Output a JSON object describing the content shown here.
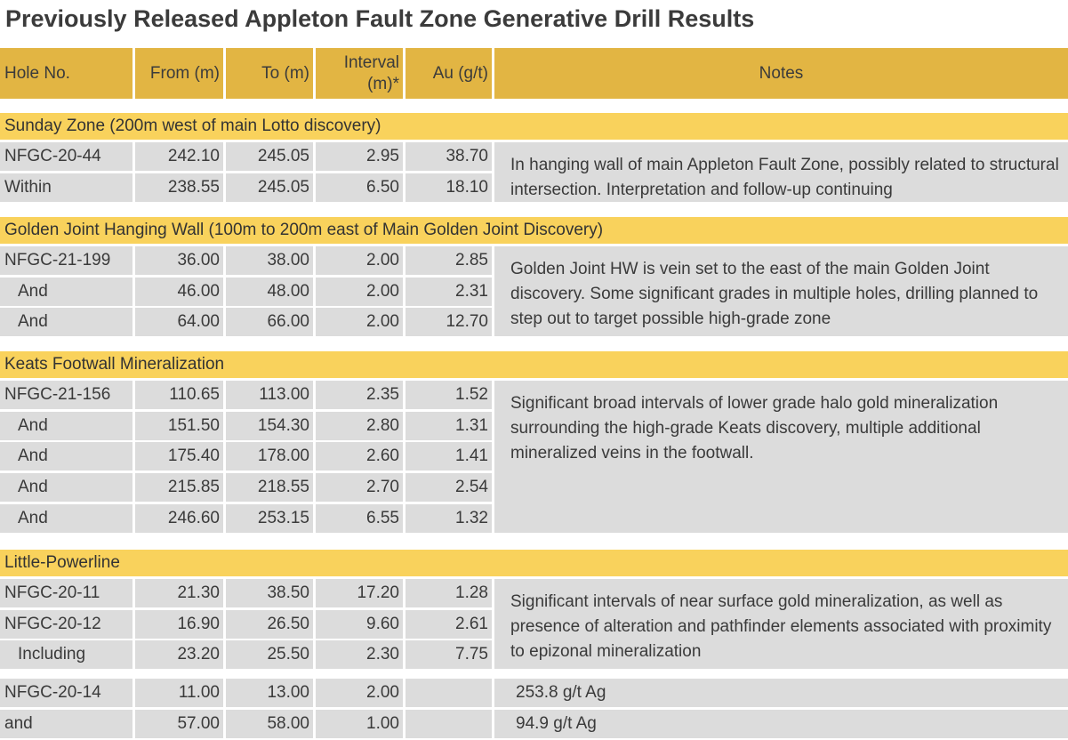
{
  "title": "Previously Released Appleton Fault Zone Generative Drill Results",
  "headers": {
    "hole": "Hole No.",
    "from": "From (m)",
    "to": "To (m)",
    "interval": "Interval (m)*",
    "au": "Au (g/t)",
    "notes": "Notes"
  },
  "sections": [
    {
      "title": "Sunday Zone (200m west of main Lotto discovery)",
      "rows": [
        [
          "NFGC-20-44",
          "242.10",
          "245.05",
          "2.95",
          "38.70"
        ],
        [
          "Within",
          "238.55",
          "245.05",
          "6.50",
          "18.10"
        ]
      ],
      "note": "In hanging wall of main Appleton Fault Zone, possibly related to structural intersection.  Interpretation and follow-up continuing"
    },
    {
      "title": "Golden Joint Hanging Wall (100m to 200m east of Main Golden Joint Discovery)",
      "rows": [
        [
          "NFGC-21-199",
          "36.00",
          "38.00",
          "2.00",
          "2.85"
        ],
        [
          "  And",
          "46.00",
          "48.00",
          "2.00",
          "2.31"
        ],
        [
          "  And",
          "64.00",
          "66.00",
          "2.00",
          "12.70"
        ]
      ],
      "note": "Golden Joint HW is vein set to the east of the main Golden Joint discovery.  Some significant grades in multiple holes, drilling planned to step out to target possible high-grade zone"
    },
    {
      "title": "Keats Footwall Mineralization",
      "rows": [
        [
          "NFGC-21-156",
          "110.65",
          "113.00",
          "2.35",
          "1.52"
        ],
        [
          "  And",
          "151.50",
          "154.30",
          "2.80",
          "1.31"
        ],
        [
          "  And",
          "175.40",
          "178.00",
          "2.60",
          "1.41"
        ],
        [
          "  And",
          "215.85",
          "218.55",
          "2.70",
          "2.54"
        ],
        [
          "  And",
          "246.60",
          "253.15",
          "6.55",
          "1.32"
        ]
      ],
      "note": "Significant broad intervals of lower grade halo gold mineralization surrounding the high-grade Keats discovery, multiple additional mineralized veins in the footwall."
    },
    {
      "title": "Little-Powerline",
      "rows": [
        [
          "NFGC-20-11",
          "21.30",
          "38.50",
          "17.20",
          "1.28"
        ],
        [
          "NFGC-20-12",
          "16.90",
          "26.50",
          "9.60",
          "2.61"
        ],
        [
          "  Including",
          "23.20",
          "25.50",
          "2.30",
          "7.75"
        ]
      ],
      "note": "Significant intervals of near surface gold mineralization, as well as presence of alteration and pathfinder elements associated with proximity to epizonal mineralization"
    }
  ],
  "ag_rows": [
    [
      "NFGC-20-14",
      "11.00",
      "13.00",
      "2.00",
      "",
      "253.8 g/t Ag"
    ],
    [
      "and",
      "57.00",
      "58.00",
      "1.00",
      "",
      "94.9 g/t Ag"
    ]
  ]
}
